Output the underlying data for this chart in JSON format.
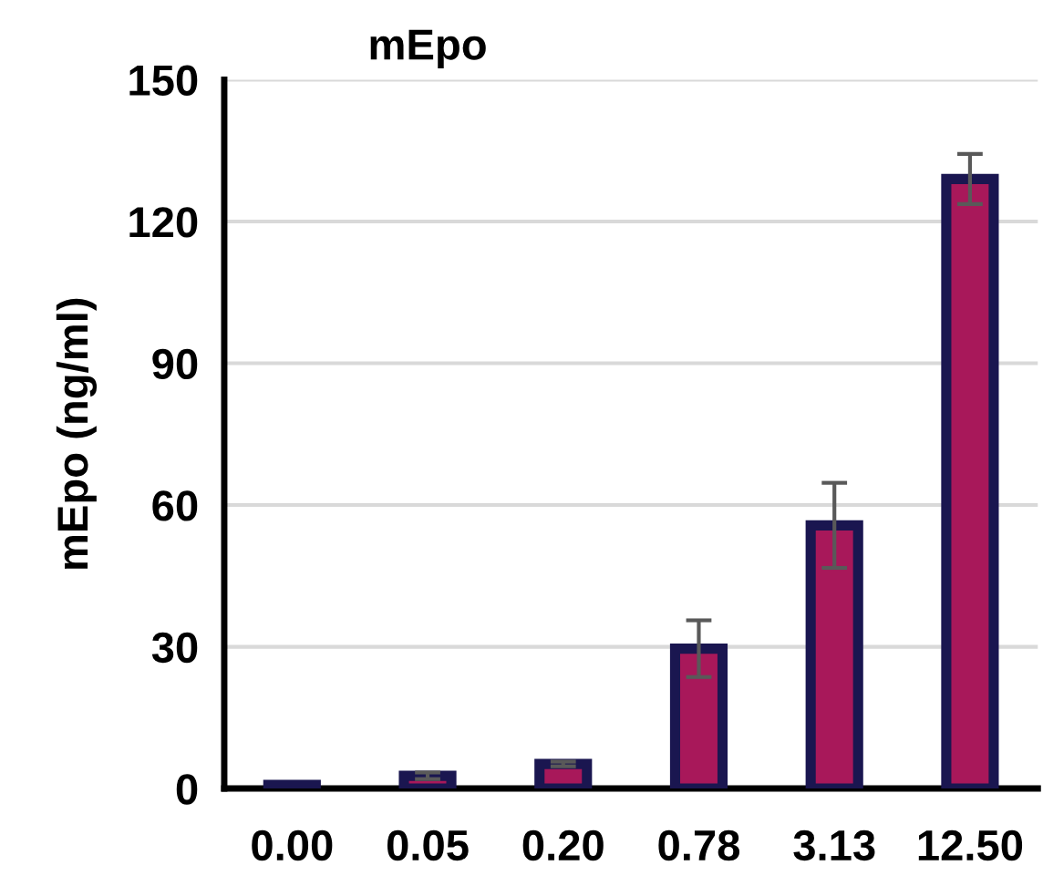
{
  "chart_data": {
    "type": "bar",
    "title": "mEpo",
    "ylabel": "mEpo (ng/ml)",
    "categories": [
      "0.00",
      "0.05",
      "0.20",
      "0.78",
      "3.13",
      "12.50"
    ],
    "series": [
      {
        "color": "#a8185a",
        "values": [
          0.8,
          2.7,
          5.2,
          29.6,
          55.7,
          129
        ],
        "errors": [
          null,
          0.7,
          0.5,
          6,
          9,
          5.3
        ]
      }
    ],
    "ylim": [
      0,
      150
    ],
    "yticks": [
      0,
      30,
      60,
      90,
      120,
      150
    ],
    "grid": "y"
  }
}
